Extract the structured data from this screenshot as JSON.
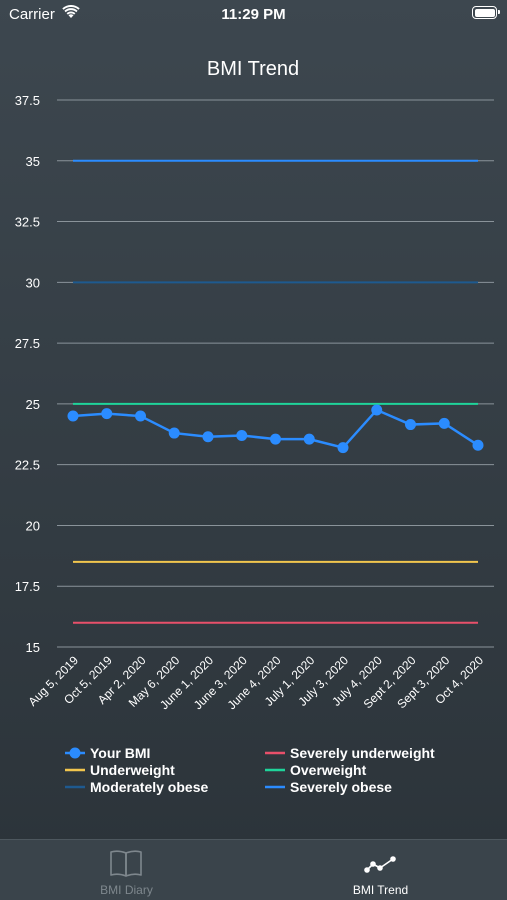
{
  "status_bar": {
    "carrier": "Carrier",
    "time": "11:29 PM"
  },
  "tabs": [
    {
      "label": "BMI Diary",
      "icon": "book-icon",
      "active": false
    },
    {
      "label": "BMI Trend",
      "icon": "trend-line-icon",
      "active": true
    }
  ],
  "chart_data": {
    "type": "line",
    "title": "BMI Trend",
    "xlabel": "",
    "ylabel": "",
    "ylim": [
      15,
      37.5
    ],
    "yticks": [
      "15",
      "17.5",
      "20",
      "22.5",
      "25",
      "27.5",
      "30",
      "32.5",
      "35",
      "37.5"
    ],
    "grid": true,
    "categories": [
      "Aug 5, 2019",
      "Oct 5, 2019",
      "Apr 2, 2020",
      "May 6, 2020",
      "June 1, 2020",
      "June 3, 2020",
      "June 4, 2020",
      "July 1, 2020",
      "July 3, 2020",
      "July 4, 2020",
      "Sept 2, 2020",
      "Sept 3, 2020",
      "Oct 4, 2020"
    ],
    "series": [
      {
        "name": "Your BMI",
        "color": "#2b8cff",
        "markers": true,
        "values": [
          24.5,
          24.6,
          24.5,
          23.8,
          23.65,
          23.7,
          23.55,
          23.55,
          23.2,
          24.75,
          24.15,
          24.2,
          23.3
        ]
      },
      {
        "name": "Severely underweight",
        "color": "#e8506a",
        "markers": false,
        "values": [
          16,
          16,
          16,
          16,
          16,
          16,
          16,
          16,
          16,
          16,
          16,
          16,
          16
        ]
      },
      {
        "name": "Underweight",
        "color": "#f2c64e",
        "markers": false,
        "values": [
          18.5,
          18.5,
          18.5,
          18.5,
          18.5,
          18.5,
          18.5,
          18.5,
          18.5,
          18.5,
          18.5,
          18.5,
          18.5
        ]
      },
      {
        "name": "Overweight",
        "color": "#1fd49a",
        "markers": false,
        "values": [
          25,
          25,
          25,
          25,
          25,
          25,
          25,
          25,
          25,
          25,
          25,
          25,
          25
        ]
      },
      {
        "name": "Moderately obese",
        "color": "#1e5a8f",
        "markers": false,
        "values": [
          30,
          30,
          30,
          30,
          30,
          30,
          30,
          30,
          30,
          30,
          30,
          30,
          30
        ]
      },
      {
        "name": "Severely obese",
        "color": "#2b8cff",
        "markers": false,
        "values": [
          35,
          35,
          35,
          35,
          35,
          35,
          35,
          35,
          35,
          35,
          35,
          35,
          35
        ]
      }
    ],
    "legend": [
      "Your BMI",
      "Severely underweight",
      "Underweight",
      "Overweight",
      "Moderately obese",
      "Severely obese"
    ],
    "legend_position": "bottom"
  }
}
